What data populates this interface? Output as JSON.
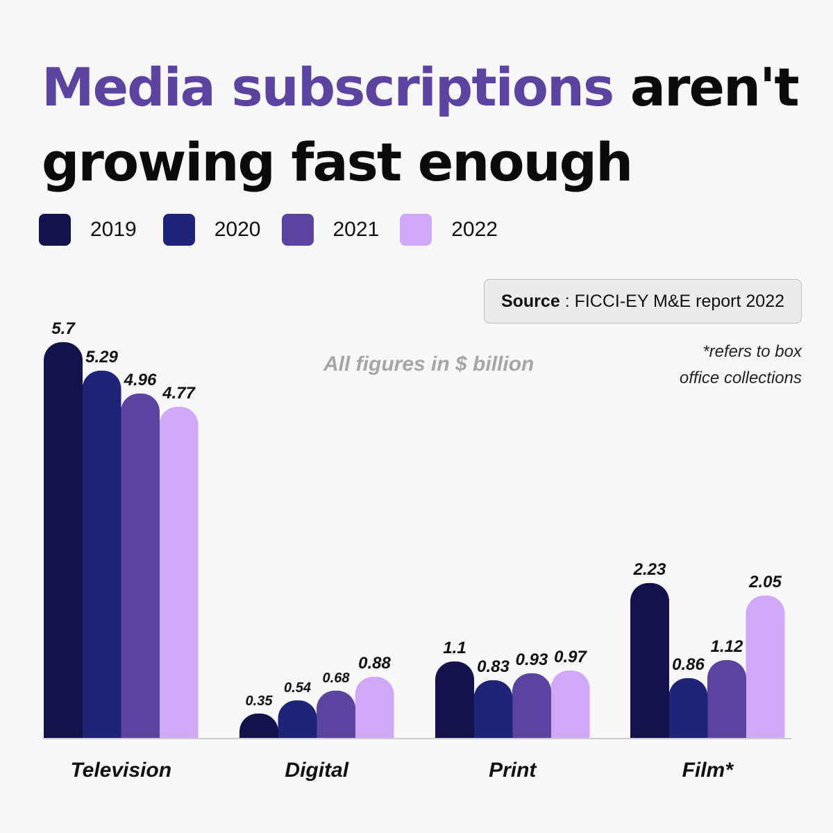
{
  "title": {
    "accent": "Media subscriptions",
    "rest_line1": " aren't",
    "line2": "growing fast enough"
  },
  "legend": [
    {
      "label": "2019",
      "color": "#13124d"
    },
    {
      "label": "2020",
      "color": "#1e2478"
    },
    {
      "label": "2021",
      "color": "#5b43a0"
    },
    {
      "label": "2022",
      "color": "#cfa9f7"
    }
  ],
  "source": {
    "label": "Source",
    "text": ": FICCI-EY M&E report 2022"
  },
  "units_note": "All figures in $ billion",
  "footnote": {
    "line1": "*refers to box",
    "line2": "office collections"
  },
  "chart_data": {
    "type": "bar",
    "categories": [
      "Television",
      "Digital",
      "Print",
      "Film*"
    ],
    "series": [
      {
        "name": "2019",
        "color": "#13124d",
        "values": [
          5.7,
          0.35,
          1.1,
          2.23
        ],
        "labels": [
          "5.7",
          "0.35",
          "1.1",
          "2.23"
        ]
      },
      {
        "name": "2020",
        "color": "#1e2478",
        "values": [
          5.29,
          0.54,
          0.83,
          0.86
        ],
        "labels": [
          "5.29",
          "0.54",
          "0.83",
          "0.86"
        ]
      },
      {
        "name": "2021",
        "color": "#5b43a0",
        "values": [
          4.96,
          0.68,
          0.93,
          1.12
        ],
        "labels": [
          "4.96",
          "0.68",
          "0.93",
          "1.12"
        ]
      },
      {
        "name": "2022",
        "color": "#cfa9f7",
        "values": [
          4.77,
          0.88,
          0.97,
          2.05
        ],
        "labels": [
          "4.77",
          "0.88",
          "0.97",
          "2.05"
        ]
      }
    ],
    "ylim": [
      0,
      5.7
    ],
    "grid": false,
    "axes_visible": false,
    "legend_position": "top-left"
  }
}
